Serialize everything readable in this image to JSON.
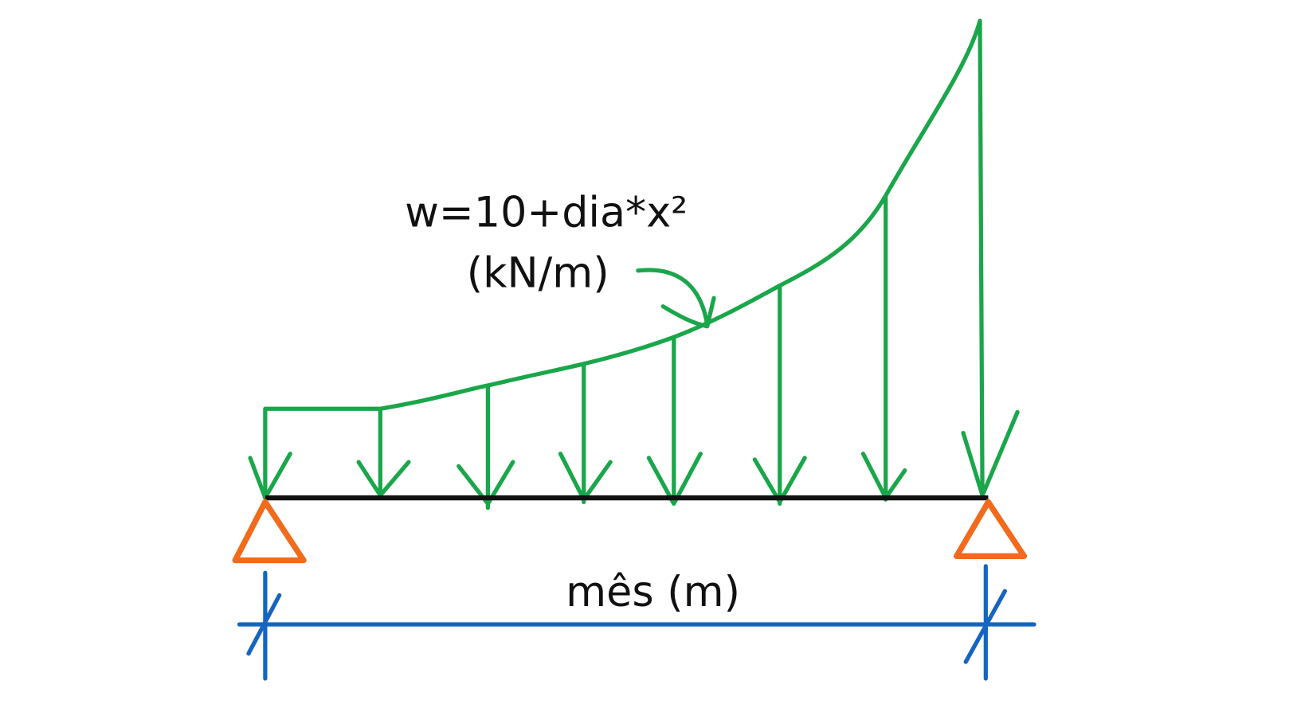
{
  "load": {
    "formula": "w=10+dia*x²",
    "unit": "(kN/m)"
  },
  "span": {
    "label": "mês (m)"
  }
}
